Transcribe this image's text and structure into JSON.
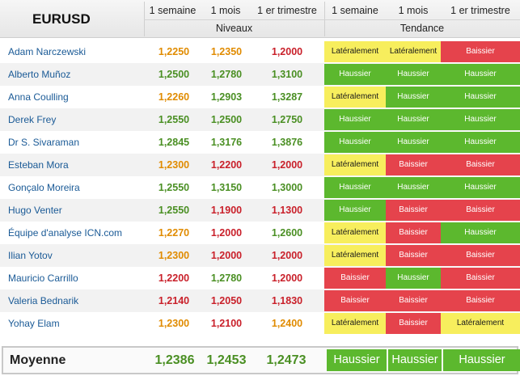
{
  "table": {
    "pair": "EURUSD",
    "periods": [
      "1 semaine",
      "1 mois",
      "1 er trimestre"
    ],
    "levels_label": "Niveaux",
    "trend_label": "Tendance",
    "rows": [
      {
        "name": "Adam Narczewski",
        "values": [
          "1,2250",
          "1,2350",
          "1,2000"
        ],
        "value_colors": [
          "flat",
          "flat",
          "down"
        ],
        "trends": [
          "Latéralement",
          "Latéralement",
          "Baissier"
        ],
        "trend_types": [
          "flat",
          "flat",
          "down"
        ]
      },
      {
        "name": "Alberto Muñoz",
        "values": [
          "1,2500",
          "1,2780",
          "1,3100"
        ],
        "value_colors": [
          "up",
          "up",
          "up"
        ],
        "trends": [
          "Haussier",
          "Haussier",
          "Haussier"
        ],
        "trend_types": [
          "up",
          "up",
          "up"
        ]
      },
      {
        "name": "Anna Coulling",
        "values": [
          "1,2260",
          "1,2903",
          "1,3287"
        ],
        "value_colors": [
          "flat",
          "up",
          "up"
        ],
        "trends": [
          "Latéralement",
          "Haussier",
          "Haussier"
        ],
        "trend_types": [
          "flat",
          "up",
          "up"
        ]
      },
      {
        "name": "Derek Frey",
        "values": [
          "1,2550",
          "1,2500",
          "1,2750"
        ],
        "value_colors": [
          "up",
          "up",
          "up"
        ],
        "trends": [
          "Haussier",
          "Haussier",
          "Haussier"
        ],
        "trend_types": [
          "up",
          "up",
          "up"
        ]
      },
      {
        "name": "Dr S. Sivaraman",
        "values": [
          "1,2845",
          "1,3176",
          "1,3876"
        ],
        "value_colors": [
          "up",
          "up",
          "up"
        ],
        "trends": [
          "Haussier",
          "Haussier",
          "Haussier"
        ],
        "trend_types": [
          "up",
          "up",
          "up"
        ]
      },
      {
        "name": "Esteban Mora",
        "values": [
          "1,2300",
          "1,2200",
          "1,2000"
        ],
        "value_colors": [
          "flat",
          "down",
          "down"
        ],
        "trends": [
          "Latéralement",
          "Baissier",
          "Baissier"
        ],
        "trend_types": [
          "flat",
          "down",
          "down"
        ]
      },
      {
        "name": "Gonçalo Moreira",
        "values": [
          "1,2550",
          "1,3150",
          "1,3000"
        ],
        "value_colors": [
          "up",
          "up",
          "up"
        ],
        "trends": [
          "Haussier",
          "Haussier",
          "Haussier"
        ],
        "trend_types": [
          "up",
          "up",
          "up"
        ]
      },
      {
        "name": "Hugo Venter",
        "values": [
          "1,2550",
          "1,1900",
          "1,1300"
        ],
        "value_colors": [
          "up",
          "down",
          "down"
        ],
        "trends": [
          "Haussier",
          "Baissier",
          "Baissier"
        ],
        "trend_types": [
          "up",
          "down",
          "down"
        ]
      },
      {
        "name": "Équipe d'analyse ICN.com",
        "values": [
          "1,2270",
          "1,2000",
          "1,2600"
        ],
        "value_colors": [
          "flat",
          "down",
          "up"
        ],
        "trends": [
          "Latéralement",
          "Baissier",
          "Haussier"
        ],
        "trend_types": [
          "flat",
          "down",
          "up"
        ]
      },
      {
        "name": "Ilian Yotov",
        "values": [
          "1,2300",
          "1,2000",
          "1,2000"
        ],
        "value_colors": [
          "flat",
          "down",
          "down"
        ],
        "trends": [
          "Latéralement",
          "Baissier",
          "Baissier"
        ],
        "trend_types": [
          "flat",
          "down",
          "down"
        ]
      },
      {
        "name": "Mauricio Carrillo",
        "values": [
          "1,2200",
          "1,2780",
          "1,2000"
        ],
        "value_colors": [
          "down",
          "up",
          "down"
        ],
        "trends": [
          "Baissier",
          "Haussier",
          "Baissier"
        ],
        "trend_types": [
          "down",
          "up",
          "down"
        ]
      },
      {
        "name": "Valeria Bednarik",
        "values": [
          "1,2140",
          "1,2050",
          "1,1830"
        ],
        "value_colors": [
          "down",
          "down",
          "down"
        ],
        "trends": [
          "Baissier",
          "Baissier",
          "Baissier"
        ],
        "trend_types": [
          "down",
          "down",
          "down"
        ]
      },
      {
        "name": "Yohay Elam",
        "values": [
          "1,2300",
          "1,2100",
          "1,2400"
        ],
        "value_colors": [
          "flat",
          "down",
          "flat"
        ],
        "trends": [
          "Latéralement",
          "Baissier",
          "Latéralement"
        ],
        "trend_types": [
          "flat",
          "down",
          "flat"
        ]
      }
    ],
    "average": {
      "name": "Moyenne",
      "values": [
        "1,2386",
        "1,2453",
        "1,2473"
      ],
      "value_colors": [
        "up",
        "up",
        "up"
      ],
      "trends": [
        "Haussier",
        "Haussier",
        "Haussier"
      ],
      "trend_types": [
        "up",
        "up",
        "up"
      ]
    }
  },
  "colors": {
    "haussier": "#5cb82e",
    "lateralement": "#f7ee5d",
    "baissier": "#e5434c",
    "name_link": "#1a5a96"
  }
}
